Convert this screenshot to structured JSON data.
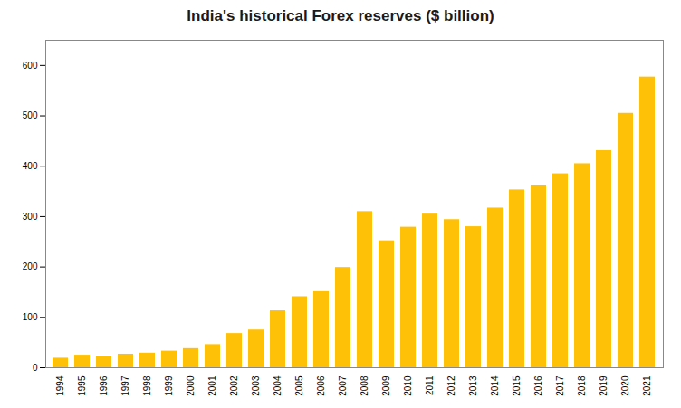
{
  "chart_data": {
    "type": "bar",
    "title": "India's historical Forex reserves ($ billion)",
    "categories": [
      "1994",
      "1995",
      "1996",
      "1997",
      "1998",
      "1999",
      "2000",
      "2001",
      "2002",
      "2003",
      "2004",
      "2005",
      "2006",
      "2007",
      "2008",
      "2009",
      "2010",
      "2011",
      "2012",
      "2013",
      "2014",
      "2015",
      "2016",
      "2017",
      "2018",
      "2019",
      "2020",
      "2021"
    ],
    "values": [
      19,
      25,
      22,
      27,
      29,
      33,
      38,
      46,
      68,
      75,
      113,
      141,
      151,
      199,
      310,
      252,
      279,
      305,
      294,
      280,
      317,
      353,
      361,
      385,
      405,
      431,
      505,
      577
    ],
    "color": "#FFC107",
    "ylim": [
      0,
      650
    ],
    "yticks": [
      0,
      100,
      200,
      300,
      400,
      500,
      600
    ],
    "grid": false
  }
}
